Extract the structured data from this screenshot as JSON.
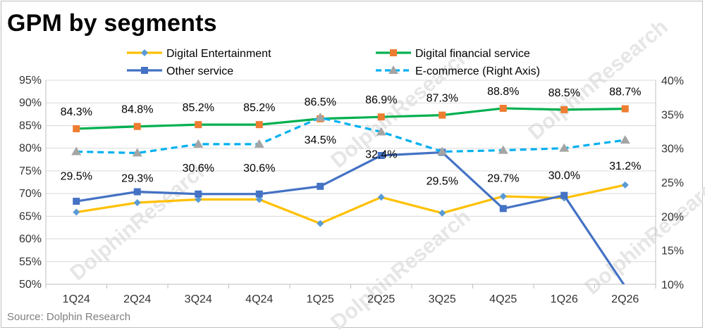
{
  "title": "GPM by segments",
  "source": "Source: Dolphin Research",
  "watermark": "DolphinResearch",
  "chart_data": {
    "type": "line",
    "categories": [
      "1Q24",
      "2Q24",
      "3Q24",
      "4Q24",
      "1Q25",
      "2Q25",
      "3Q25",
      "4Q25",
      "1Q26",
      "2Q26"
    ],
    "y_left": {
      "min": 50,
      "max": 95,
      "step": 5,
      "ticks": [
        "50%",
        "55%",
        "60%",
        "65%",
        "70%",
        "75%",
        "80%",
        "85%",
        "90%",
        "95%"
      ]
    },
    "y_right": {
      "min": 10,
      "max": 40,
      "step": 5,
      "ticks": [
        "10%",
        "15%",
        "20%",
        "25%",
        "30%",
        "35%",
        "40%"
      ]
    },
    "series": [
      {
        "name": "Digital Entertainment",
        "axis": "left",
        "color": "#FFC000",
        "marker": "diamond",
        "marker_color": "#5B9BD5",
        "dash": false,
        "values": [
          65.9,
          68.0,
          68.7,
          68.7,
          63.4,
          69.2,
          65.7,
          69.4,
          69.0,
          71.9
        ],
        "labels": []
      },
      {
        "name": "Digital financial service",
        "axis": "left",
        "color": "#00B050",
        "marker": "square",
        "marker_color": "#ED7D31",
        "dash": false,
        "values": [
          84.3,
          84.8,
          85.2,
          85.2,
          86.5,
          86.9,
          87.3,
          88.8,
          88.5,
          88.7
        ],
        "labels": [
          "84.3%",
          "84.8%",
          "85.2%",
          "85.2%",
          "86.5%",
          "86.9%",
          "87.3%",
          "88.8%",
          "88.5%",
          "88.7%"
        ]
      },
      {
        "name": "Other service",
        "axis": "left",
        "color": "#4472C4",
        "marker": "square",
        "marker_color": "#4472C4",
        "dash": false,
        "values": [
          68.3,
          70.4,
          69.9,
          69.9,
          71.6,
          78.4,
          79.1,
          66.7,
          69.6,
          49.5
        ],
        "labels": []
      },
      {
        "name": "E-commerce (Right Axis)",
        "axis": "right",
        "color": "#00B0F0",
        "marker": "triangle",
        "marker_color": "#A5A5A5",
        "dash": true,
        "values": [
          29.5,
          29.3,
          30.6,
          30.6,
          34.5,
          32.4,
          29.5,
          29.7,
          30.0,
          31.2
        ],
        "labels": [
          "29.5%",
          "29.3%",
          "30.6%",
          "30.6%",
          "34.5%",
          "32.4%",
          "29.5%",
          "29.7%",
          "30.0%",
          "31.2%"
        ]
      }
    ],
    "legend": "top"
  }
}
